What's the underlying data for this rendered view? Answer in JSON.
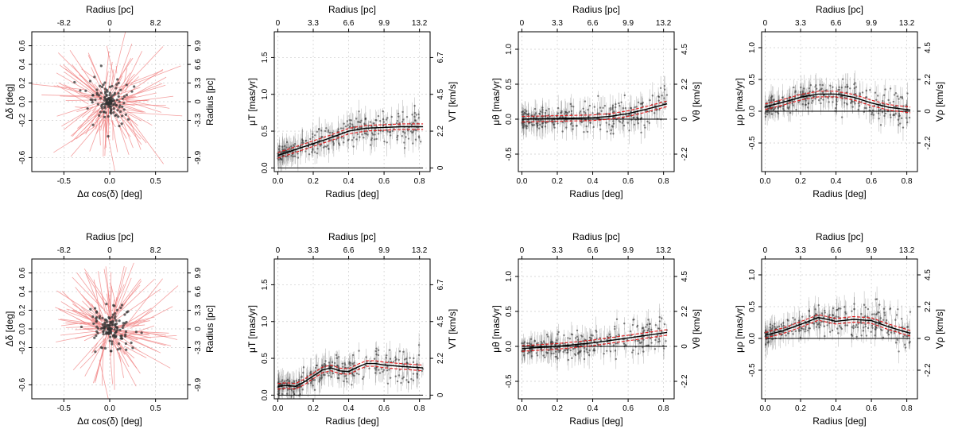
{
  "chart_data": [
    {
      "type": "scatter",
      "panel": "sky-vectors-top",
      "xlabel": "Δα cos(δ) [deg]",
      "ylabel": "Δδ [deg]",
      "top_axis_label": "Radius [pc]",
      "right_axis_label": "Radius [pc]",
      "xlim": [
        -0.85,
        0.85
      ],
      "ylim": [
        -0.75,
        0.75
      ],
      "x_ticks": [
        "-0.5",
        "0.0",
        "0.5"
      ],
      "x_tick_values": [
        -0.5,
        0.0,
        0.5
      ],
      "y_ticks": [
        "-0.6",
        "-0.2",
        "0.0",
        "0.2",
        "0.4",
        "0.6"
      ],
      "y_tick_values": [
        -0.6,
        -0.2,
        0.0,
        0.2,
        0.4,
        0.6
      ],
      "top_ticks": [
        "-8.2",
        "0",
        "8.2"
      ],
      "top_tick_values": [
        -0.5,
        0.0,
        0.5
      ],
      "right_ticks": [
        "-9.9",
        "-3.3",
        "0",
        "3.3",
        "6.6",
        "9.9"
      ],
      "right_tick_values": [
        -0.6,
        -0.2,
        0.0,
        0.2,
        0.4,
        0.6
      ]
    },
    {
      "type": "line",
      "panel": "mu-T-top",
      "xlabel": "Radius [deg]",
      "ylabel": "μT [mas/yr]",
      "top_axis_label": "Radius [pc]",
      "right_axis_label": "VT [km/s]",
      "xlim": [
        -0.02,
        0.86
      ],
      "ylim": [
        -0.05,
        1.85
      ],
      "x_ticks": [
        "0.0",
        "0.2",
        "0.4",
        "0.6",
        "0.8"
      ],
      "x_tick_values": [
        0.0,
        0.2,
        0.4,
        0.6,
        0.8
      ],
      "y_ticks": [
        "0.0",
        "0.5",
        "1.0",
        "1.5"
      ],
      "y_tick_values": [
        0.0,
        0.5,
        1.0,
        1.5
      ],
      "top_ticks": [
        "0",
        "3.3",
        "6.6",
        "9.9",
        "13.2"
      ],
      "top_tick_values": [
        0.0,
        0.2,
        0.4,
        0.6,
        0.8
      ],
      "right_ticks": [
        "0",
        "2.2",
        "4.5",
        "6.7"
      ],
      "right_tick_values": [
        0.0,
        0.5,
        1.0,
        1.5
      ],
      "series": [
        {
          "name": "fit",
          "x": [
            0.0,
            0.1,
            0.2,
            0.3,
            0.4,
            0.5,
            0.6,
            0.7,
            0.82
          ],
          "y": [
            0.17,
            0.25,
            0.33,
            0.41,
            0.5,
            0.54,
            0.55,
            0.56,
            0.56
          ]
        },
        {
          "name": "reference",
          "x": [
            0.0,
            0.82
          ],
          "y": [
            0.0,
            0.0
          ]
        }
      ]
    },
    {
      "type": "line",
      "panel": "mu-theta-top",
      "xlabel": "Radius [deg]",
      "ylabel": "μθ [mas/yr]",
      "top_axis_label": "Radius [pc]",
      "right_axis_label": "Vθ [km/s]",
      "xlim": [
        -0.02,
        0.86
      ],
      "ylim": [
        -0.75,
        1.25
      ],
      "x_ticks": [
        "0.0",
        "0.2",
        "0.4",
        "0.6",
        "0.8"
      ],
      "x_tick_values": [
        0.0,
        0.2,
        0.4,
        0.6,
        0.8
      ],
      "y_ticks": [
        "-0.5",
        "0.0",
        "0.5",
        "1.0"
      ],
      "y_tick_values": [
        -0.5,
        0.0,
        0.5,
        1.0
      ],
      "top_ticks": [
        "0",
        "3.3",
        "6.6",
        "9.9",
        "13.2"
      ],
      "top_tick_values": [
        0.0,
        0.2,
        0.4,
        0.6,
        0.8
      ],
      "right_ticks": [
        "-2.2",
        "0",
        "2.2",
        "4.5"
      ],
      "right_tick_values": [
        -0.5,
        0.0,
        0.5,
        1.0
      ],
      "series": [
        {
          "name": "fit",
          "x": [
            0.0,
            0.2,
            0.4,
            0.5,
            0.6,
            0.7,
            0.82
          ],
          "y": [
            0.0,
            0.01,
            0.02,
            0.04,
            0.08,
            0.14,
            0.22
          ]
        },
        {
          "name": "reference",
          "x": [
            0.0,
            0.82
          ],
          "y": [
            0.0,
            0.0
          ]
        }
      ]
    },
    {
      "type": "line",
      "panel": "mu-rho-top",
      "xlabel": "Radius [deg]",
      "ylabel": "μρ [mas/yr]",
      "top_axis_label": "Radius [pc]",
      "right_axis_label": "Vρ [km/s]",
      "xlim": [
        -0.02,
        0.86
      ],
      "ylim": [
        -0.95,
        1.25
      ],
      "x_ticks": [
        "0.0",
        "0.2",
        "0.4",
        "0.6",
        "0.8"
      ],
      "x_tick_values": [
        0.0,
        0.2,
        0.4,
        0.6,
        0.8
      ],
      "y_ticks": [
        "-0.5",
        "0.0",
        "0.5",
        "1.0"
      ],
      "y_tick_values": [
        -0.5,
        0.0,
        0.5,
        1.0
      ],
      "top_ticks": [
        "0",
        "3.3",
        "6.6",
        "9.9",
        "13.2"
      ],
      "top_tick_values": [
        0.0,
        0.2,
        0.4,
        0.6,
        0.8
      ],
      "right_ticks": [
        "-2.2",
        "0",
        "2.2",
        "4.5"
      ],
      "right_tick_values": [
        -0.5,
        0.0,
        0.5,
        1.0
      ],
      "series": [
        {
          "name": "fit",
          "x": [
            0.0,
            0.1,
            0.2,
            0.3,
            0.4,
            0.5,
            0.6,
            0.7,
            0.82
          ],
          "y": [
            0.07,
            0.14,
            0.22,
            0.27,
            0.27,
            0.22,
            0.13,
            0.06,
            0.02
          ]
        },
        {
          "name": "reference",
          "x": [
            0.0,
            0.82
          ],
          "y": [
            0.0,
            0.0
          ]
        }
      ]
    },
    {
      "type": "scatter",
      "panel": "sky-vectors-bottom",
      "xlabel": "Δα cos(δ) [deg]",
      "ylabel": "Δδ [deg]",
      "top_axis_label": "Radius [pc]",
      "right_axis_label": "Radius [pc]",
      "xlim": [
        -0.85,
        0.85
      ],
      "ylim": [
        -0.75,
        0.75
      ],
      "x_ticks": [
        "-0.5",
        "0.0",
        "0.5"
      ],
      "x_tick_values": [
        -0.5,
        0.0,
        0.5
      ],
      "y_ticks": [
        "-0.6",
        "-0.2",
        "0.0",
        "0.2",
        "0.4",
        "0.6"
      ],
      "y_tick_values": [
        -0.6,
        -0.2,
        0.0,
        0.2,
        0.4,
        0.6
      ],
      "top_ticks": [
        "-8.2",
        "0",
        "8.2"
      ],
      "top_tick_values": [
        -0.5,
        0.0,
        0.5
      ],
      "right_ticks": [
        "-9.9",
        "-3.3",
        "0",
        "3.3",
        "6.6",
        "9.9"
      ],
      "right_tick_values": [
        -0.6,
        -0.2,
        0.0,
        0.2,
        0.4,
        0.6
      ]
    },
    {
      "type": "line",
      "panel": "mu-T-bottom",
      "xlabel": "Radius [deg]",
      "ylabel": "μT [mas/yr]",
      "top_axis_label": "Radius [pc]",
      "right_axis_label": "VT [km/s]",
      "xlim": [
        -0.02,
        0.86
      ],
      "ylim": [
        -0.05,
        1.85
      ],
      "x_ticks": [
        "0.0",
        "0.2",
        "0.4",
        "0.6",
        "0.8"
      ],
      "x_tick_values": [
        0.0,
        0.2,
        0.4,
        0.6,
        0.8
      ],
      "y_ticks": [
        "0.0",
        "0.5",
        "1.0",
        "1.5"
      ],
      "y_tick_values": [
        0.0,
        0.5,
        1.0,
        1.5
      ],
      "top_ticks": [
        "0",
        "3.3",
        "6.6",
        "9.9",
        "13.2"
      ],
      "top_tick_values": [
        0.0,
        0.2,
        0.4,
        0.6,
        0.8
      ],
      "right_ticks": [
        "0",
        "2.2",
        "4.5",
        "6.7"
      ],
      "right_tick_values": [
        0.0,
        0.5,
        1.0,
        1.5
      ],
      "series": [
        {
          "name": "fit",
          "x": [
            0.0,
            0.05,
            0.1,
            0.15,
            0.2,
            0.25,
            0.3,
            0.35,
            0.4,
            0.45,
            0.5,
            0.55,
            0.6,
            0.7,
            0.82
          ],
          "y": [
            0.12,
            0.13,
            0.12,
            0.18,
            0.26,
            0.34,
            0.37,
            0.33,
            0.32,
            0.38,
            0.43,
            0.43,
            0.41,
            0.39,
            0.37
          ]
        },
        {
          "name": "reference",
          "x": [
            0.0,
            0.82
          ],
          "y": [
            0.0,
            0.0
          ]
        }
      ]
    },
    {
      "type": "line",
      "panel": "mu-theta-bottom",
      "xlabel": "Radius [deg]",
      "ylabel": "μθ [mas/yr]",
      "top_axis_label": "Radius [pc]",
      "right_axis_label": "Vθ [km/s]",
      "xlim": [
        -0.02,
        0.86
      ],
      "ylim": [
        -0.75,
        1.25
      ],
      "x_ticks": [
        "0.0",
        "0.2",
        "0.4",
        "0.6",
        "0.8"
      ],
      "x_tick_values": [
        0.0,
        0.2,
        0.4,
        0.6,
        0.8
      ],
      "y_ticks": [
        "-0.5",
        "0.0",
        "0.5",
        "1.0"
      ],
      "y_tick_values": [
        -0.5,
        0.0,
        0.5,
        1.0
      ],
      "top_ticks": [
        "0",
        "3.3",
        "6.6",
        "9.9",
        "13.2"
      ],
      "top_tick_values": [
        0.0,
        0.2,
        0.4,
        0.6,
        0.8
      ],
      "right_ticks": [
        "-2.2",
        "0",
        "2.2",
        "4.5"
      ],
      "right_tick_values": [
        -0.5,
        0.0,
        0.5,
        1.0
      ],
      "series": [
        {
          "name": "fit",
          "x": [
            0.0,
            0.2,
            0.4,
            0.6,
            0.82
          ],
          "y": [
            -0.03,
            0.0,
            0.05,
            0.12,
            0.2
          ]
        },
        {
          "name": "reference",
          "x": [
            0.0,
            0.82
          ],
          "y": [
            0.0,
            0.0
          ]
        }
      ]
    },
    {
      "type": "line",
      "panel": "mu-rho-bottom",
      "xlabel": "Radius [deg]",
      "ylabel": "μρ [mas/yr]",
      "top_axis_label": "Radius [pc]",
      "right_axis_label": "Vρ [km/s]",
      "xlim": [
        -0.02,
        0.86
      ],
      "ylim": [
        -0.95,
        1.25
      ],
      "x_ticks": [
        "0.0",
        "0.2",
        "0.4",
        "0.6",
        "0.8"
      ],
      "x_tick_values": [
        0.0,
        0.2,
        0.4,
        0.6,
        0.8
      ],
      "y_ticks": [
        "-0.5",
        "0.0",
        "0.5",
        "1.0"
      ],
      "y_tick_values": [
        -0.5,
        0.0,
        0.5,
        1.0
      ],
      "top_ticks": [
        "0",
        "3.3",
        "6.6",
        "9.9",
        "13.2"
      ],
      "top_tick_values": [
        0.0,
        0.2,
        0.4,
        0.6,
        0.8
      ],
      "right_ticks": [
        "-2.2",
        "0",
        "2.2",
        "4.5"
      ],
      "right_tick_values": [
        -0.5,
        0.0,
        0.5,
        1.0
      ],
      "series": [
        {
          "name": "fit",
          "x": [
            0.0,
            0.1,
            0.2,
            0.3,
            0.4,
            0.5,
            0.6,
            0.7,
            0.82
          ],
          "y": [
            0.05,
            0.12,
            0.22,
            0.33,
            0.27,
            0.3,
            0.28,
            0.18,
            0.08
          ]
        },
        {
          "name": "reference",
          "x": [
            0.0,
            0.82
          ],
          "y": [
            0.0,
            0.0
          ]
        }
      ]
    }
  ],
  "colors": {
    "fit_line": "#000000",
    "fit_band": "#e41a1c",
    "points": "#333333",
    "vectors": "#f08080",
    "grid": "#cccccc"
  }
}
